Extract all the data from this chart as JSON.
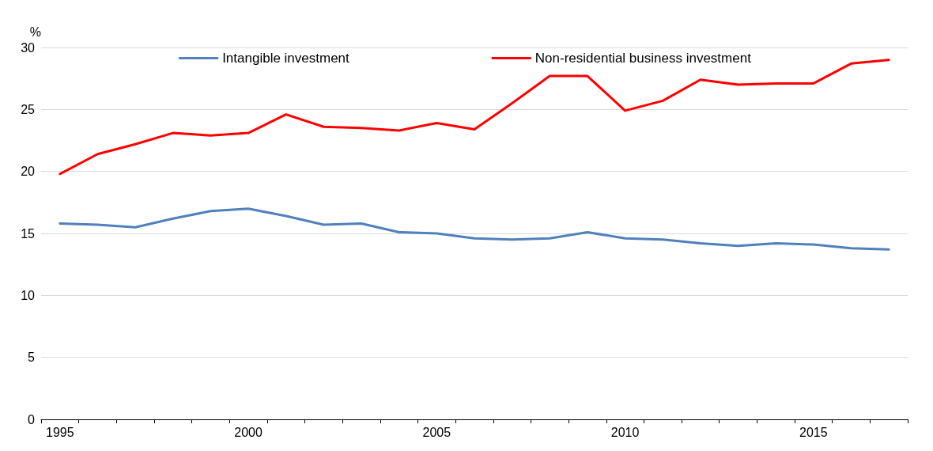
{
  "chart_data": {
    "type": "line",
    "ylabel": "%",
    "categories": [
      "1995",
      null,
      null,
      null,
      null,
      "2000",
      null,
      null,
      null,
      null,
      "2005",
      null,
      null,
      null,
      null,
      "2010",
      null,
      null,
      null,
      null,
      "2015",
      null,
      null
    ],
    "series": [
      {
        "name": "Intangible investment",
        "color": "#4f81bd",
        "values": [
          15.8,
          15.7,
          15.5,
          16.2,
          16.8,
          17.0,
          16.4,
          15.7,
          15.8,
          15.1,
          15.0,
          14.6,
          14.5,
          14.6,
          15.1,
          14.6,
          14.5,
          14.2,
          14.0,
          14.2,
          14.1,
          13.8,
          13.7
        ]
      },
      {
        "name": "Non-residential business investment",
        "color": "#ff0000",
        "values": [
          19.8,
          21.4,
          22.2,
          23.1,
          22.9,
          23.1,
          24.6,
          23.6,
          23.5,
          23.3,
          23.9,
          23.4,
          25.5,
          27.7,
          27.7,
          24.9,
          25.7,
          27.4,
          27.0,
          27.1,
          27.1,
          28.7,
          29.0
        ]
      }
    ],
    "ylim": [
      0,
      30
    ],
    "yticks": [
      0,
      5,
      10,
      15,
      20,
      25,
      30
    ],
    "grid": "y",
    "legend": "top",
    "marker": "none",
    "line_style": "solid"
  }
}
